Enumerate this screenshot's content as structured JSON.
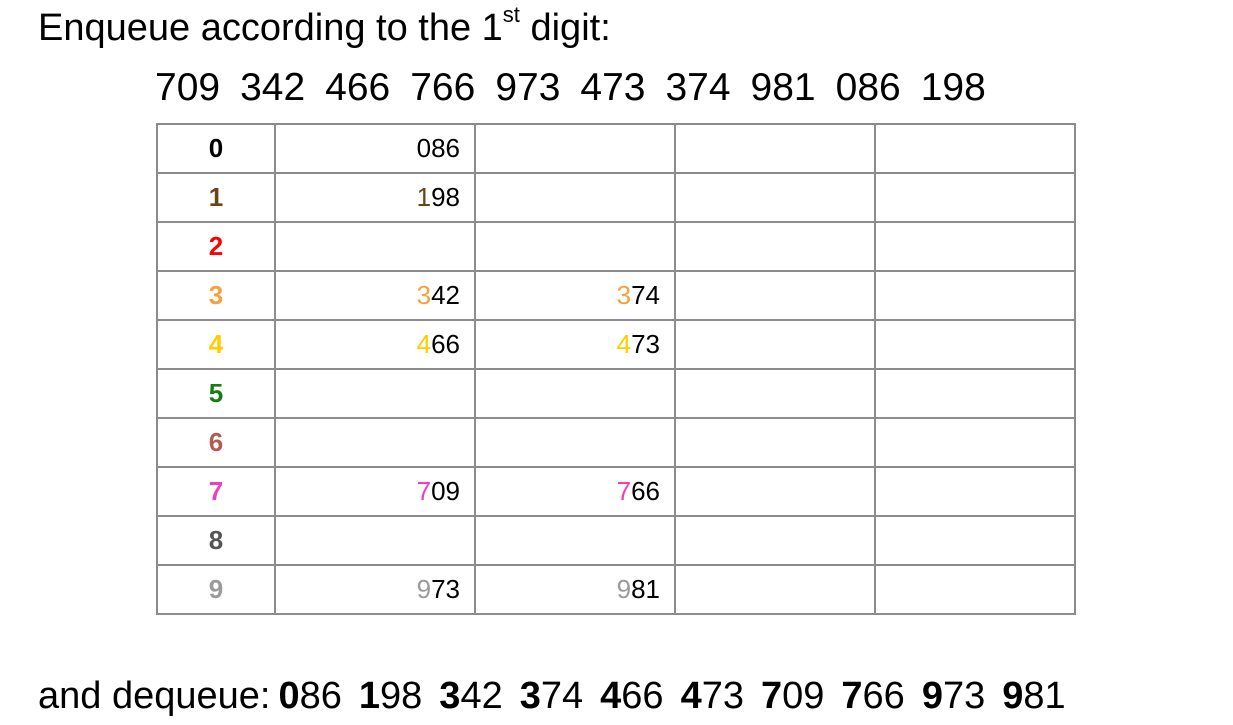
{
  "title": {
    "prefix": "Enqueue according to the 1",
    "superscript": "st",
    "suffix": " digit:"
  },
  "input_sequence": [
    "709",
    "342",
    "466",
    "766",
    "973",
    "473",
    "374",
    "981",
    "086",
    "198"
  ],
  "buckets": [
    {
      "digit": "0",
      "color": "#000000",
      "entries": [
        {
          "lead": "0",
          "rest": "86"
        },
        null,
        null,
        null
      ]
    },
    {
      "digit": "1",
      "color": "#6b4315",
      "entries": [
        {
          "lead": "1",
          "rest": "98"
        },
        null,
        null,
        null
      ]
    },
    {
      "digit": "2",
      "color": "#ff0000",
      "entries": [
        null,
        null,
        null,
        null
      ]
    },
    {
      "digit": "3",
      "color": "#f7a040",
      "entries": [
        {
          "lead": "3",
          "rest": "42"
        },
        {
          "lead": "3",
          "rest": "74"
        },
        null,
        null
      ]
    },
    {
      "digit": "4",
      "color": "#ffcc00",
      "entries": [
        {
          "lead": "4",
          "rest": "66"
        },
        {
          "lead": "4",
          "rest": "73"
        },
        null,
        null
      ]
    },
    {
      "digit": "5",
      "color": "#1a7a16",
      "entries": [
        null,
        null,
        null,
        null
      ]
    },
    {
      "digit": "6",
      "color": "#b25a54",
      "entries": [
        null,
        null,
        null,
        null
      ]
    },
    {
      "digit": "7",
      "color": "#f03ebe",
      "entries": [
        {
          "lead": "7",
          "rest": "09"
        },
        {
          "lead": "7",
          "rest": "66"
        },
        null,
        null
      ]
    },
    {
      "digit": "8",
      "color": "#555555",
      "entries": [
        null,
        null,
        null,
        null
      ]
    },
    {
      "digit": "9",
      "color": "#9a9a9a",
      "entries": [
        {
          "lead": "9",
          "rest": "73"
        },
        {
          "lead": "9",
          "rest": "81"
        },
        null,
        null
      ]
    }
  ],
  "footer": {
    "label": "and dequeue:",
    "output": [
      {
        "lead": "0",
        "rest": "86"
      },
      {
        "lead": "1",
        "rest": "98"
      },
      {
        "lead": "3",
        "rest": "42"
      },
      {
        "lead": "3",
        "rest": "74"
      },
      {
        "lead": "4",
        "rest": "66"
      },
      {
        "lead": "4",
        "rest": "73"
      },
      {
        "lead": "7",
        "rest": "09"
      },
      {
        "lead": "7",
        "rest": "66"
      },
      {
        "lead": "9",
        "rest": "73"
      },
      {
        "lead": "9",
        "rest": "81"
      }
    ]
  }
}
